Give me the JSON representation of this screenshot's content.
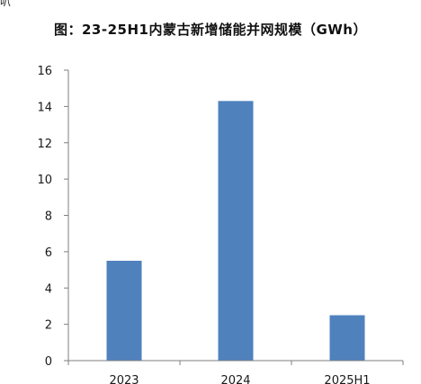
{
  "corner_text": "叭",
  "chart_data": {
    "type": "bar",
    "title": "图：23-25H1内蒙古新增储能并网规模（GWh）",
    "xlabel": "",
    "ylabel": "",
    "categories": [
      "2023",
      "2024",
      "2025H1"
    ],
    "values": [
      5.5,
      14.3,
      2.5
    ],
    "ylim": [
      0,
      16
    ],
    "yticks": [
      0,
      2,
      4,
      6,
      8,
      10,
      12,
      14,
      16
    ],
    "bar_color": "#4f81bd",
    "axis_color": "#7f7f7f",
    "grid": false,
    "legend": "none"
  }
}
